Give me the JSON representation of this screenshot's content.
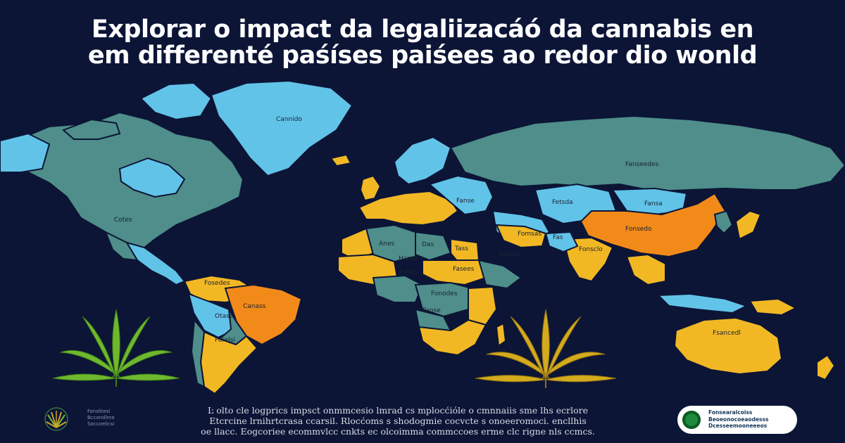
{
  "title": {
    "line1": "Explorar o impact da legaliizacáó da cannabis en",
    "line2": "em differenté paśíses paiśees ao redor dio wonld"
  },
  "legend_colors": {
    "ocean": "#0c1536",
    "not_legal": "#4f8e8a",
    "decriminalized": "#62c3e8",
    "medical": "#f2b824",
    "fully_legal": "#f28a1a",
    "leaf_green": "#6fb82e",
    "leaf_gold": "#d4aa1e"
  },
  "map_labels": {
    "greenland": "Cannido",
    "canada": "Cotes",
    "russia": "Fanseedes",
    "brazil": "Canass",
    "china": "Fonsedo",
    "australia": "Fsancedl",
    "peru": "Otase",
    "argentina": "Forelsi",
    "europe": "Fanse",
    "kazakhstan": "Fetsda",
    "mongolia": "Fansa",
    "iran": "Fomsas",
    "india": "Fonsclo",
    "colombia": "Fosedes",
    "pakistan": "Fas",
    "algeria": "Anes",
    "libya": "Das",
    "egypt": "Tass",
    "chad": "Hante",
    "nigeria": "Fanes",
    "sahara": "Fasees",
    "drc": "Fonodes",
    "angola": "Fanse",
    "saudi": "Fasede"
  },
  "footer": {
    "left_lines": [
      "Fanslitesi",
      "Bccorollme",
      "Soccoelicsi"
    ],
    "body_lines": [
      "Ŀ olto cle logprics impsct onmmcesio lmrad cs mplocćióle o cmnnaiis sme lhs ecrlore",
      "Etcrcine lrnihrtcrasa ccarsil. Rlocćoms s shodogmie cocvcte s onoeeromoci. encllhis",
      "oe llacc. Eogcoriee ecommvlcc cnkts ec olcoimma commccoes erme clc rigne nls ccmcs."
    ],
    "badge_lines": [
      "Fonsearalcoiss",
      "Beoeonocoeaodesss",
      "Dcesseemooneeeos"
    ]
  }
}
